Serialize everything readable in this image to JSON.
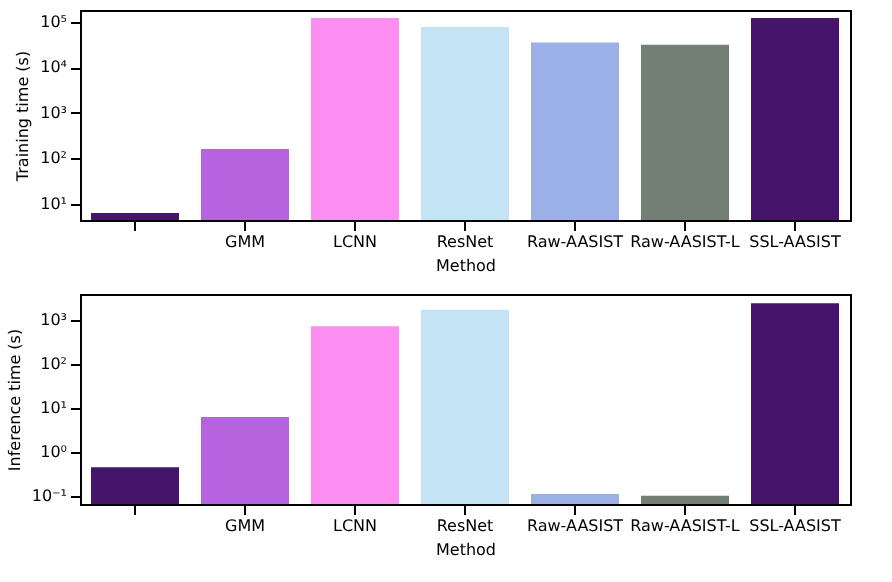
{
  "chart_data": [
    {
      "type": "bar",
      "xlabel": "Method",
      "ylabel": "Training time (s)",
      "categories": [
        null,
        "GMM",
        "LCNN",
        "ResNet",
        "Raw-AASIST",
        "Raw-AASIST-L",
        "SSL-AASIST"
      ],
      "values": [
        6.3,
        160,
        120000,
        76000,
        35000,
        31000,
        120000
      ],
      "colors": [
        "#44156b",
        "#b663e0",
        "#fb8ef0",
        "#c4e3f5",
        "#9cb0e8",
        "#737f74",
        "#44156b"
      ],
      "log": true,
      "ylim": [
        4.4,
        180000
      ],
      "yticks": [
        {
          "value": 10,
          "label": "10¹"
        },
        {
          "value": 100,
          "label": "10²"
        },
        {
          "value": 1000,
          "label": "10³"
        },
        {
          "value": 10000,
          "label": "10⁴"
        },
        {
          "value": 100000,
          "label": "10⁵"
        }
      ],
      "grid": false,
      "legend": false
    },
    {
      "type": "bar",
      "xlabel": "Method",
      "ylabel": "Inference time (s)",
      "categories": [
        null,
        "GMM",
        "LCNN",
        "ResNet",
        "Raw-AASIST",
        "Raw-AASIST-L",
        "SSL-AASIST"
      ],
      "values": [
        0.45,
        6.3,
        740,
        1750,
        0.11,
        0.1,
        2450
      ],
      "colors": [
        "#44156b",
        "#b663e0",
        "#fb8ef0",
        "#c4e3f5",
        "#9cb0e8",
        "#737f74",
        "#44156b"
      ],
      "log": true,
      "ylim": [
        0.065,
        4000
      ],
      "yticks": [
        {
          "value": 0.1,
          "label": "10⁻¹"
        },
        {
          "value": 1,
          "label": "10⁰"
        },
        {
          "value": 10,
          "label": "10¹"
        },
        {
          "value": 100,
          "label": "10²"
        },
        {
          "value": 1000,
          "label": "10³"
        }
      ],
      "grid": false,
      "legend": false
    }
  ]
}
